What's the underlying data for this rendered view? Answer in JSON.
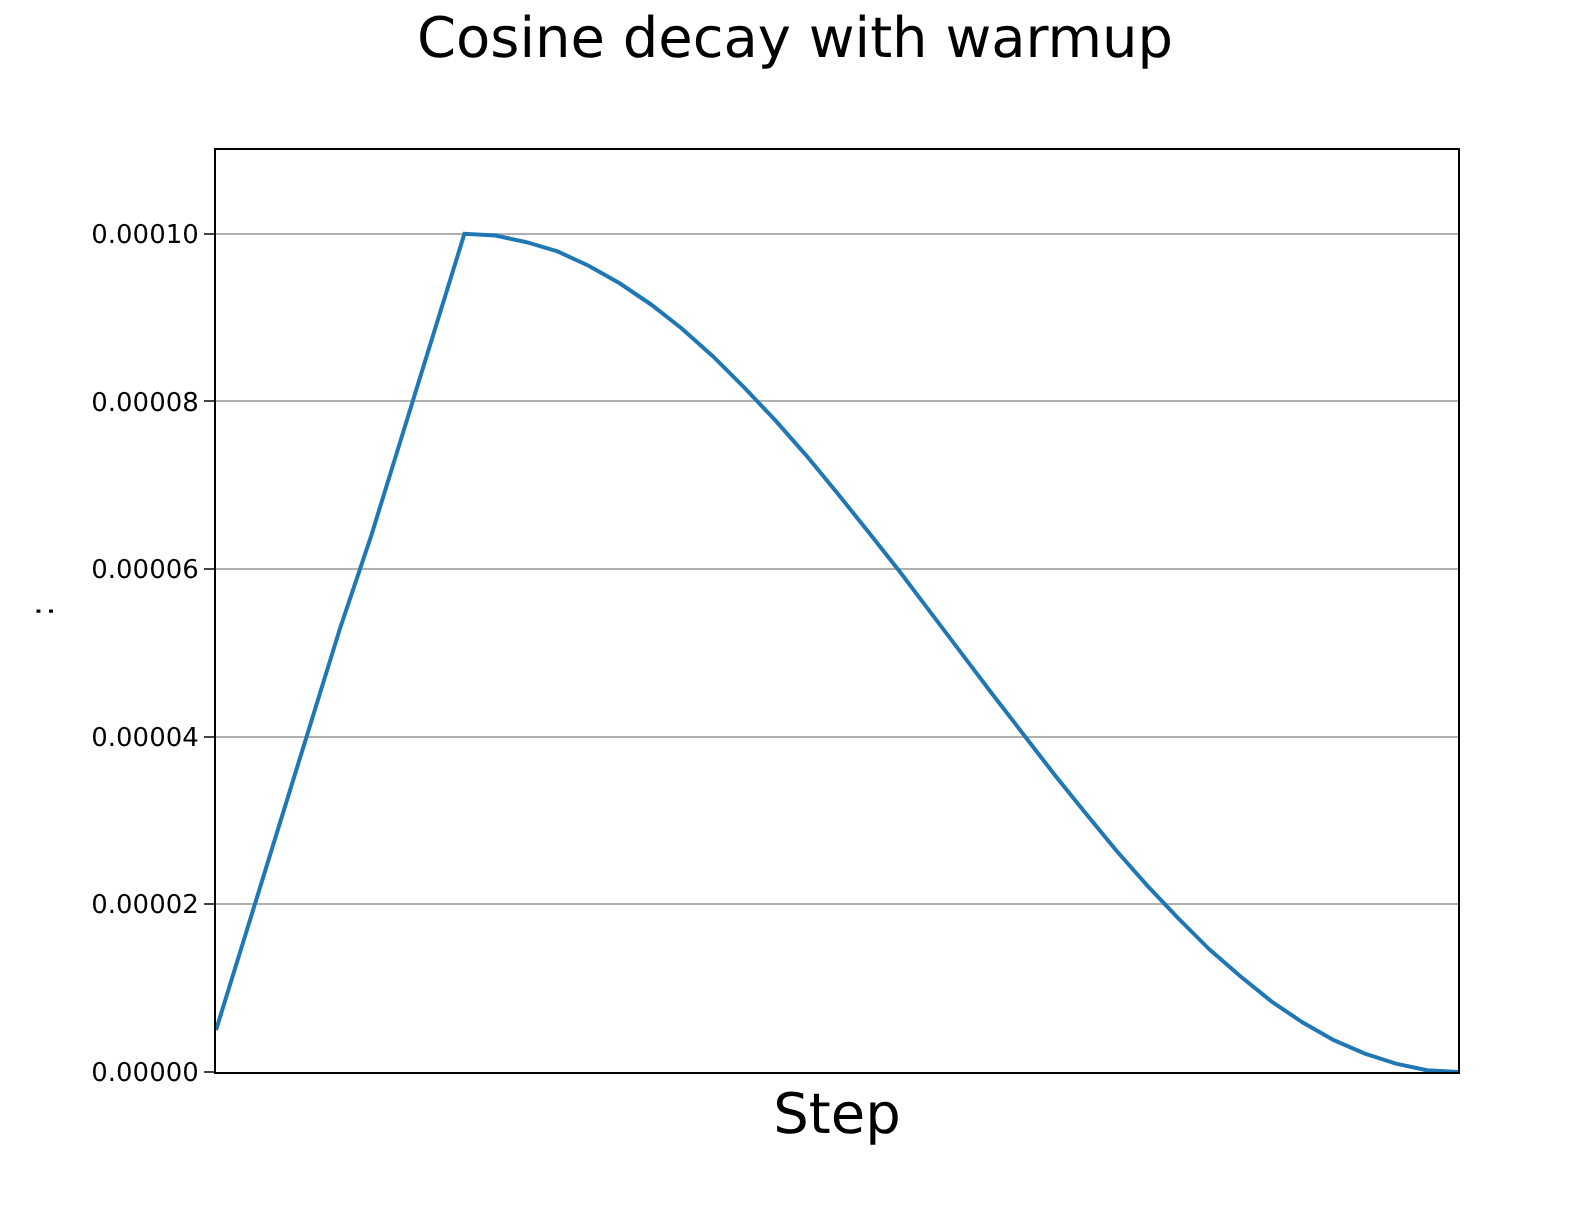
{
  "chart_data": {
    "type": "line",
    "title": "Cosine decay with warmup",
    "xlabel": "Step",
    "ylabel": ":",
    "categories": [
      null,
      null,
      null,
      null,
      null,
      null,
      null,
      null,
      null,
      null,
      null,
      null,
      null,
      null,
      null,
      null,
      null,
      null,
      null,
      null,
      null,
      null,
      null,
      null,
      null,
      null,
      null,
      null,
      null,
      null,
      null,
      null,
      null,
      null,
      null,
      null,
      null,
      null,
      null,
      null,
      null
    ],
    "series": [
      {
        "color": "#1f77b4",
        "values": [
          5e-06,
          1.7e-05,
          2.9e-05,
          4.1e-05,
          5.3e-05,
          6.4e-05,
          7.6e-05,
          8.8e-05,
          0.0001,
          9.98e-05,
          9.9e-05,
          9.79e-05,
          9.62e-05,
          9.41e-05,
          9.16e-05,
          8.87e-05,
          8.54e-05,
          8.17e-05,
          7.78e-05,
          7.36e-05,
          6.91e-05,
          6.45e-05,
          5.98e-05,
          5.49e-05,
          5e-05,
          4.51e-05,
          4.03e-05,
          3.55e-05,
          3.09e-05,
          2.64e-05,
          2.22e-05,
          1.83e-05,
          1.46e-05,
          1.14e-05,
          8.4e-06,
          5.9e-06,
          3.8e-06,
          2.2e-06,
          1e-06,
          2e-07,
          0.0
        ]
      }
    ],
    "ylim": [
      0,
      0.00011
    ],
    "yticks": [
      {
        "value": 0,
        "label": "0.00000"
      },
      {
        "value": 2e-05,
        "label": "0.00002"
      },
      {
        "value": 4e-05,
        "label": "0.00004"
      },
      {
        "value": 6e-05,
        "label": "0.00006"
      },
      {
        "value": 8e-05,
        "label": "0.00008"
      },
      {
        "value": 0.0001,
        "label": "0.00010"
      }
    ],
    "grid": "y",
    "tick_labels": "y",
    "marker": "none",
    "line_style": "solid",
    "legend": false
  }
}
